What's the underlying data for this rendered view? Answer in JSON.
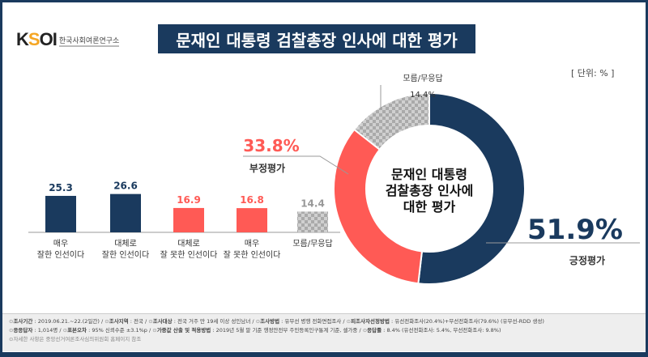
{
  "header": {
    "logo": "KSOI",
    "logo_sub": "한국사회여론연구소",
    "title": "문재인 대통령 검찰총장 인사에 대한 평가",
    "unit": "[ 단위: % ]"
  },
  "chart_data": [
    {
      "type": "bar",
      "categories": [
        "매우\n잘한 인선이다",
        "대체로\n잘한 인선이다",
        "대체로\n잘 못한 인선이다",
        "매우\n잘 못한 인선이다",
        "모름/무응답"
      ],
      "values": [
        25.3,
        26.6,
        16.9,
        16.8,
        14.4
      ],
      "colors": [
        "#1a3a5e",
        "#1a3a5e",
        "#ff5a55",
        "#ff5a55",
        "#bbbbbb"
      ],
      "ylim": [
        0,
        30
      ]
    },
    {
      "type": "pie",
      "title": "문재인 대통령\n검찰총장 인사에\n대한 평가",
      "labels": [
        "긍정평가",
        "부정평가",
        "모름/무응답"
      ],
      "values": [
        51.9,
        33.8,
        14.4
      ],
      "value_labels": [
        "51.9%",
        "33.8%",
        "14.4%"
      ],
      "colors": [
        "#1a3a5e",
        "#ff5a55",
        "#bbbbbb"
      ]
    }
  ],
  "footer": {
    "line1": [
      [
        "조사기간",
        "2019.06.21.~22.(2일간)"
      ],
      [
        "조사지역",
        "전국"
      ],
      [
        "조사대상",
        "전국 거주 만 19세 이상 성인남녀"
      ],
      [
        "조사방법",
        "유무선 병행 전화면접조사"
      ],
      [
        "피조사자선정방법",
        "유선전화조사(20.4%)+무선전화조사(79.6%) (유무선-RDD 생성)"
      ]
    ],
    "line2": [
      [
        "응응답자",
        "1,014명"
      ],
      [
        "표본오차",
        "95% 신뢰수준 ±3.1%p"
      ],
      [
        "가중값 산출 및 적용방법",
        "2019년 5월 말 기준 행정안전부 주민등록인구통계 기준, 셀가중"
      ],
      [
        "응답률",
        "8.4% (유선전화조사: 5.4%, 무선전화조사: 9.8%)"
      ]
    ],
    "line3": "자세한 사항은 중앙선거여론조사심의위원회 홈페이지 참조"
  }
}
